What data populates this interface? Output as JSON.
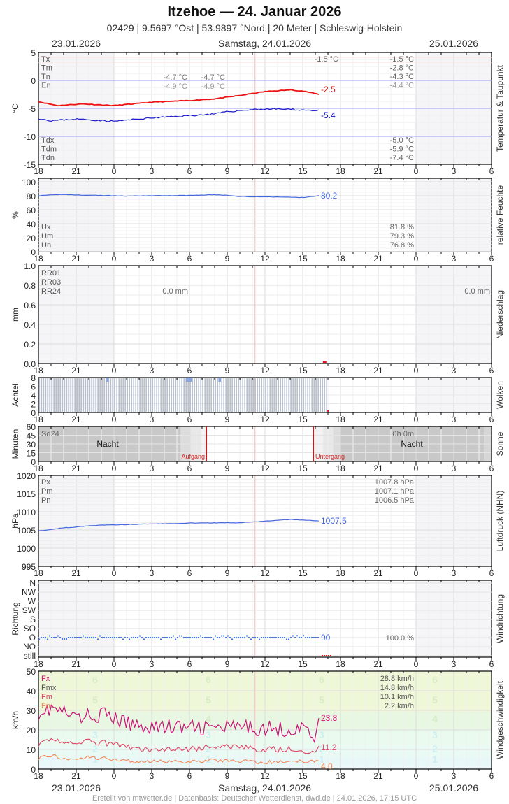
{
  "header": {
    "title": "Itzehoe  —  24. Januar 2026",
    "subtitle": "02429  |  9.5697 °Ost  |  53.9897 °Nord  |  20 Meter  |  Schleswig-Holstein"
  },
  "dates": {
    "left": "23.01.2026",
    "center": "Samstag, 24.01.2026",
    "right": "25.01.2026"
  },
  "footer": "Erstellt von mtwetter.de | Datenbasis: Deutscher Wetterdienst, dwd.de | 24.01.2026, 17:15 UTC",
  "x_ticks": [
    "18",
    "21",
    "0",
    "3",
    "6",
    "9",
    "12",
    "15",
    "18",
    "21",
    "0",
    "3",
    "6"
  ],
  "panels": {
    "temperature": {
      "side_label": "Temperatur & Taupunkt",
      "unit": "°C",
      "y_ticks": [
        "5",
        "0",
        "-5",
        "-10",
        "-15"
      ],
      "legend_top": [
        "Tx",
        "Tm",
        "Tn",
        "En"
      ],
      "legend_bottom": [
        "Tdx",
        "Tdm",
        "Tdn"
      ],
      "mid_values": {
        "tn_a": "-4.7 °C",
        "tn_b": "-4.7 °C",
        "en_a": "-4.9 °C",
        "en_b": "-4.9 °C",
        "tx": "-1.5 °C"
      },
      "summary_top": [
        "-1.5 °C",
        "-2.8 °C",
        "-4.3 °C",
        "-4.4 °C"
      ],
      "summary_bottom": [
        "-5.0 °C",
        "-5.9 °C",
        "-7.4 °C"
      ],
      "last_temp": "-2.5",
      "last_dew": "-5.4",
      "colors": {
        "temp": "#ee1111",
        "dew": "#1111cc"
      }
    },
    "humidity": {
      "side_label": "relative Feuchte",
      "unit": "%",
      "y_ticks": [
        "100",
        "80",
        "60",
        "40",
        "20",
        "0"
      ],
      "legend": [
        "Ux",
        "Um",
        "Un"
      ],
      "summary": [
        "81.8 %",
        "79.3 %",
        "76.8 %"
      ],
      "last": "80.2",
      "color": "#4466dd"
    },
    "precip": {
      "side_label": "Niederschlag",
      "unit": "mm",
      "y_ticks": [
        "1.0",
        "0.8",
        "0.6",
        "0.4",
        "0.2",
        "0.0"
      ],
      "legend": [
        "RR01",
        "RR03",
        "RR24"
      ],
      "value_day": "0.0 mm",
      "value_right": "0.0 mm"
    },
    "clouds": {
      "side_label": "Wolken",
      "unit": "Achtel",
      "y_ticks": [
        "8",
        "6",
        "4",
        "2",
        "0"
      ]
    },
    "sun": {
      "side_label": "Sonne",
      "unit": "Minuten",
      "y_ticks": [
        "60",
        "45",
        "30",
        "15",
        "0"
      ],
      "legend": "Sd24",
      "night_left": "Nacht",
      "night_right": "Nacht",
      "sunrise": "Aufgang",
      "sunset": "Untergang",
      "summary": "0h 0m"
    },
    "pressure": {
      "side_label": "Luftdruck (NHN)",
      "unit": "hPa",
      "y_ticks": [
        "1020",
        "1015",
        "1010",
        "1005",
        "1000",
        "995"
      ],
      "legend": [
        "Px",
        "Pm",
        "Pn"
      ],
      "summary": [
        "1007.8 hPa",
        "1007.1 hPa",
        "1006.5 hPa"
      ],
      "last": "1007.5",
      "color": "#4466dd"
    },
    "winddir": {
      "side_label": "Windrichtung",
      "unit": "Richtung",
      "y_ticks": [
        "N",
        "NW",
        "W",
        "SW",
        "S",
        "SO",
        "O",
        "NO",
        "still"
      ],
      "last": "90",
      "summary": "100.0 %"
    },
    "windspeed": {
      "side_label": "Windgeschwindigkeit",
      "unit": "km/h",
      "y_ticks": [
        "50",
        "40",
        "30",
        "20",
        "10",
        "0"
      ],
      "legend": [
        "Fx",
        "Fmx",
        "Fm",
        "Fn"
      ],
      "summary": [
        "28.8 km/h",
        "14.8 km/h",
        "10.1 km/h",
        "2.2 km/h"
      ],
      "last_fx": "23.8",
      "last_fm": "11.2",
      "last_fn": "4.0",
      "beaufort": [
        "1",
        "2",
        "3",
        "4",
        "5",
        "6"
      ]
    }
  },
  "chart_data": [
    {
      "type": "line",
      "title": "Temperatur & Taupunkt",
      "ylabel": "°C",
      "ylim": [
        -15,
        5
      ],
      "x": [
        "18",
        "21",
        "0",
        "3",
        "6",
        "9",
        "12",
        "15",
        "16.3"
      ],
      "series": [
        {
          "name": "Temperatur",
          "values": [
            -3.8,
            -4.4,
            -4.4,
            -3.9,
            -3.6,
            -2.8,
            -1.8,
            -2.0,
            -2.5
          ]
        },
        {
          "name": "Taupunkt",
          "values": [
            -6.8,
            -7.0,
            -7.3,
            -6.7,
            -6.3,
            -5.5,
            -5.1,
            -5.3,
            -5.4
          ]
        }
      ]
    },
    {
      "type": "line",
      "title": "relative Feuchte",
      "ylabel": "%",
      "ylim": [
        0,
        100
      ],
      "x": [
        "18",
        "21",
        "0",
        "3",
        "6",
        "9",
        "12",
        "15",
        "16.3"
      ],
      "series": [
        {
          "name": "Feuchte",
          "values": [
            80,
            81,
            80,
            80,
            81,
            79,
            78,
            79,
            80.2
          ]
        }
      ]
    },
    {
      "type": "bar",
      "title": "Niederschlag",
      "ylabel": "mm",
      "ylim": [
        0,
        1.0
      ],
      "values": [
        0.0
      ]
    },
    {
      "type": "bar",
      "title": "Wolken",
      "ylabel": "Achtel",
      "ylim": [
        0,
        8
      ],
      "values": [
        8
      ]
    },
    {
      "type": "line",
      "title": "Luftdruck (NHN)",
      "ylabel": "hPa",
      "ylim": [
        995,
        1020
      ],
      "x": [
        "18",
        "21",
        "0",
        "3",
        "6",
        "9",
        "12",
        "15",
        "16.3"
      ],
      "series": [
        {
          "name": "Luftdruck",
          "values": [
            1004.8,
            1006.2,
            1006.6,
            1006.9,
            1007.0,
            1007.4,
            1007.7,
            1007.6,
            1007.5
          ]
        }
      ]
    },
    {
      "type": "scatter",
      "title": "Windrichtung",
      "ylabel": "Richtung",
      "values": [
        90
      ]
    },
    {
      "type": "line",
      "title": "Windgeschwindigkeit",
      "ylabel": "km/h",
      "ylim": [
        0,
        50
      ],
      "x": [
        "18",
        "21",
        "0",
        "3",
        "6",
        "9",
        "12",
        "15",
        "16.3"
      ],
      "series": [
        {
          "name": "Fx",
          "values": [
            29,
            27,
            23,
            21,
            21,
            22,
            20,
            19,
            23.8
          ]
        },
        {
          "name": "Fm",
          "values": [
            13,
            14,
            12,
            10,
            10,
            11,
            10,
            9,
            11.2
          ]
        },
        {
          "name": "Fn",
          "values": [
            6,
            6,
            5,
            4,
            4,
            4,
            4,
            3,
            4.0
          ]
        }
      ]
    }
  ]
}
